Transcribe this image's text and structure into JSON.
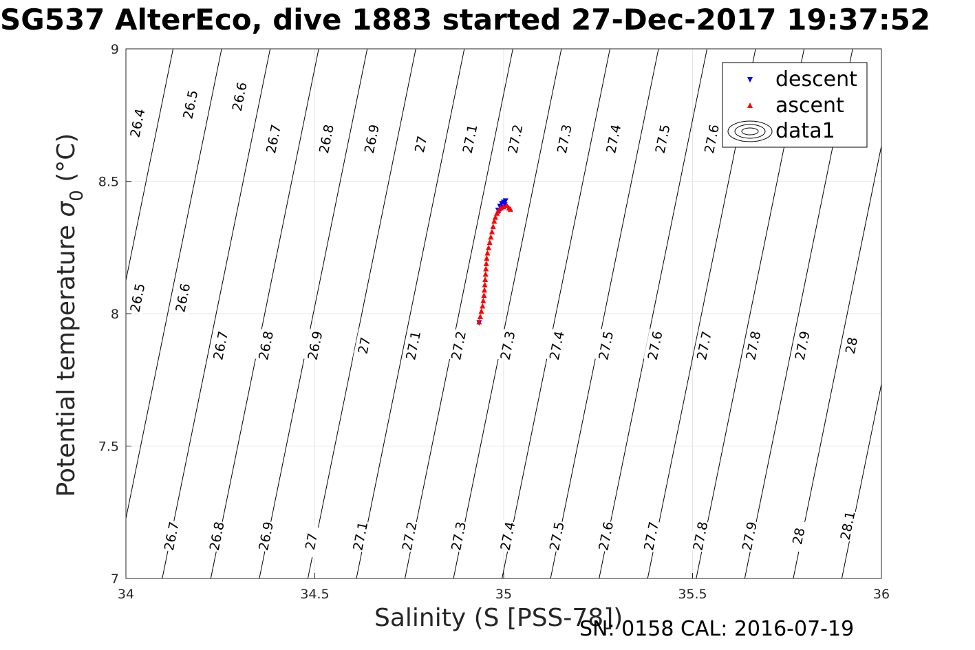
{
  "title": "SG537 AlterEco, dive 1883 started 27-Dec-2017 19:37:52",
  "footer": "SN: 0158  CAL: 2016-07-19",
  "chart_data": {
    "type": "scatter",
    "title": "SG537 AlterEco, dive 1883 started 27-Dec-2017 19:37:52",
    "xlabel": "Salinity (S [PSS-78])",
    "ylabel": "Potential temperature",
    "ylabel_symbol": "σ",
    "ylabel_subscript": "0",
    "ylabel_units": "(°C)",
    "xlim": [
      34,
      36
    ],
    "ylim": [
      7,
      9
    ],
    "xticks": [
      34,
      34.5,
      35,
      35.5,
      36
    ],
    "xtick_labels": [
      "34",
      "34.5",
      "35",
      "35.5",
      "36"
    ],
    "yticks": [
      7,
      7.5,
      8,
      8.5,
      9
    ],
    "ytick_labels": [
      "7",
      "7.5",
      "8",
      "8.5",
      "9"
    ],
    "grid": true,
    "legend_position": "top-right",
    "legend": [
      "descent",
      "ascent",
      "data1"
    ],
    "series": [
      {
        "name": "descent",
        "marker": "down-triangle",
        "color": "#0000ff",
        "points": [
          [
            34.935,
            7.965
          ],
          [
            34.985,
            8.39
          ],
          [
            34.99,
            8.405
          ],
          [
            34.995,
            8.415
          ],
          [
            35.0,
            8.42
          ],
          [
            35.005,
            8.425
          ],
          [
            35.003,
            8.41
          ],
          [
            34.998,
            8.4
          ],
          [
            34.993,
            8.395
          ],
          [
            34.988,
            8.385
          ]
        ]
      },
      {
        "name": "ascent",
        "marker": "up-triangle",
        "color": "#ff0000",
        "points": [
          [
            34.935,
            7.97
          ],
          [
            34.938,
            7.99
          ],
          [
            34.941,
            8.01
          ],
          [
            34.944,
            8.03
          ],
          [
            34.946,
            8.05
          ],
          [
            34.948,
            8.07
          ],
          [
            34.949,
            8.09
          ],
          [
            34.95,
            8.11
          ],
          [
            34.951,
            8.13
          ],
          [
            34.952,
            8.15
          ],
          [
            34.953,
            8.17
          ],
          [
            34.954,
            8.19
          ],
          [
            34.955,
            8.21
          ],
          [
            34.957,
            8.23
          ],
          [
            34.96,
            8.25
          ],
          [
            34.963,
            8.27
          ],
          [
            34.966,
            8.29
          ],
          [
            34.969,
            8.31
          ],
          [
            34.972,
            8.33
          ],
          [
            34.975,
            8.35
          ],
          [
            34.978,
            8.365
          ],
          [
            34.982,
            8.38
          ],
          [
            34.986,
            8.39
          ],
          [
            34.992,
            8.4
          ],
          [
            35.0,
            8.405
          ],
          [
            35.008,
            8.41
          ],
          [
            35.014,
            8.4
          ],
          [
            35.018,
            8.395
          ]
        ]
      }
    ],
    "isopycnals": {
      "name": "data1",
      "levels": [
        26.4,
        26.5,
        26.6,
        26.7,
        26.8,
        26.9,
        27,
        27.1,
        27.2,
        27.3,
        27.4,
        27.5,
        27.6,
        27.7,
        27.8,
        27.9,
        28,
        28.1
      ],
      "labels": [
        {
          "text": "26.4",
          "s": 34.03,
          "t": 8.72
        },
        {
          "text": "26.5",
          "s": 34.17,
          "t": 8.79
        },
        {
          "text": "26.6",
          "s": 34.3,
          "t": 8.82
        },
        {
          "text": "26.7",
          "s": 34.39,
          "t": 8.66
        },
        {
          "text": "26.8",
          "s": 34.53,
          "t": 8.66
        },
        {
          "text": "26.9",
          "s": 34.65,
          "t": 8.66
        },
        {
          "text": "27",
          "s": 34.78,
          "t": 8.64
        },
        {
          "text": "27.1",
          "s": 34.91,
          "t": 8.66
        },
        {
          "text": "27.2",
          "s": 35.03,
          "t": 8.66
        },
        {
          "text": "27.3",
          "s": 35.16,
          "t": 8.66
        },
        {
          "text": "27.4",
          "s": 35.29,
          "t": 8.66
        },
        {
          "text": "27.5",
          "s": 35.42,
          "t": 8.66
        },
        {
          "text": "27.6",
          "s": 35.55,
          "t": 8.66
        },
        {
          "text": "26.5",
          "s": 34.03,
          "t": 8.06
        },
        {
          "text": "26.6",
          "s": 34.15,
          "t": 8.06
        },
        {
          "text": "26.7",
          "s": 34.25,
          "t": 7.88
        },
        {
          "text": "26.8",
          "s": 34.37,
          "t": 7.88
        },
        {
          "text": "26.9",
          "s": 34.5,
          "t": 7.88
        },
        {
          "text": "27",
          "s": 34.63,
          "t": 7.88
        },
        {
          "text": "27.1",
          "s": 34.76,
          "t": 7.88
        },
        {
          "text": "27.2",
          "s": 34.88,
          "t": 7.88
        },
        {
          "text": "27.3",
          "s": 35.01,
          "t": 7.88
        },
        {
          "text": "27.4",
          "s": 35.14,
          "t": 7.88
        },
        {
          "text": "27.5",
          "s": 35.27,
          "t": 7.88
        },
        {
          "text": "27.6",
          "s": 35.4,
          "t": 7.88
        },
        {
          "text": "27.7",
          "s": 35.53,
          "t": 7.88
        },
        {
          "text": "27.8",
          "s": 35.66,
          "t": 7.88
        },
        {
          "text": "27.9",
          "s": 35.79,
          "t": 7.88
        },
        {
          "text": "28",
          "s": 35.92,
          "t": 7.88
        },
        {
          "text": "26.7",
          "s": 34.12,
          "t": 7.16
        },
        {
          "text": "26.8",
          "s": 34.24,
          "t": 7.16
        },
        {
          "text": "26.9",
          "s": 34.37,
          "t": 7.16
        },
        {
          "text": "27",
          "s": 34.49,
          "t": 7.14
        },
        {
          "text": "27.1",
          "s": 34.62,
          "t": 7.16
        },
        {
          "text": "27.2",
          "s": 34.75,
          "t": 7.16
        },
        {
          "text": "27.3",
          "s": 34.88,
          "t": 7.16
        },
        {
          "text": "27.4",
          "s": 35.01,
          "t": 7.16
        },
        {
          "text": "27.5",
          "s": 35.14,
          "t": 7.16
        },
        {
          "text": "27.6",
          "s": 35.27,
          "t": 7.16
        },
        {
          "text": "27.7",
          "s": 35.39,
          "t": 7.16
        },
        {
          "text": "27.8",
          "s": 35.52,
          "t": 7.16
        },
        {
          "text": "27.9",
          "s": 35.65,
          "t": 7.16
        },
        {
          "text": "28",
          "s": 35.78,
          "t": 7.16
        },
        {
          "text": "28.1",
          "s": 35.91,
          "t": 7.2
        }
      ]
    }
  }
}
